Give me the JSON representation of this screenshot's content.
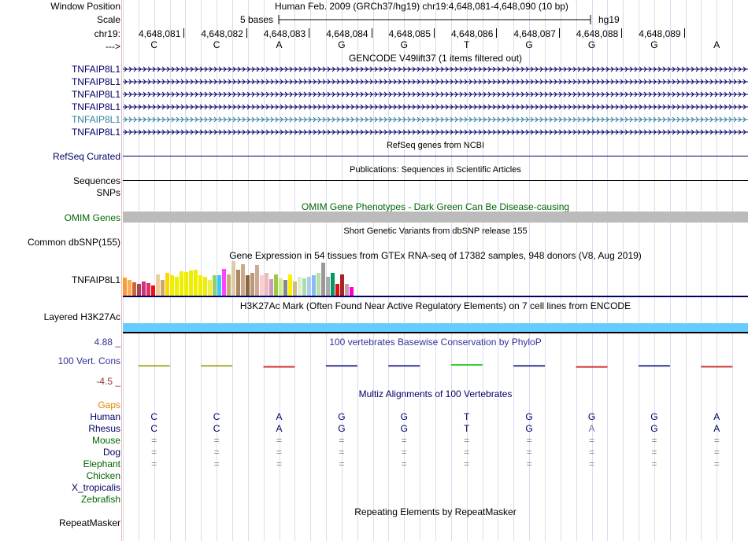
{
  "header": {
    "window_position_label": "Window Position",
    "scale_label": "Scale",
    "chr_label": "chr19:",
    "arrow_label": "--->",
    "assembly_position": "Human Feb. 2009 (GRCh37/hg19)   chr19:4,648,081-4,648,090 (10 bp)",
    "scale_text": "5 bases",
    "db": "hg19"
  },
  "ruler": {
    "positions": [
      "4,648,081",
      "4,648,082",
      "4,648,083",
      "4,648,084",
      "4,648,085",
      "4,648,086",
      "4,648,087",
      "4,648,088",
      "4,648,089"
    ],
    "bases": [
      "C",
      "C",
      "A",
      "G",
      "G",
      "T",
      "G",
      "G",
      "G",
      "A"
    ]
  },
  "gencode": {
    "title": "GENCODE V49lift37 (1 items filtered out)",
    "transcripts": [
      "TNFAIP8L1",
      "TNFAIP8L1",
      "TNFAIP8L1",
      "TNFAIP8L1",
      "TNFAIP8L1",
      "TNFAIP8L1"
    ]
  },
  "refseq": {
    "title": "RefSeq genes from NCBI",
    "label": "RefSeq Curated"
  },
  "pubs": {
    "title": "Publications: Sequences in Scientific Articles",
    "label_sequences": "Sequences",
    "label_snps": "SNPs"
  },
  "omim": {
    "title": "OMIM Gene Phenotypes - Dark Green Can Be Disease-causing",
    "label": "OMIM Genes"
  },
  "dbsnp": {
    "title": "Short Genetic Variants from dbSNP release 155",
    "label": "Common dbSNP(155)"
  },
  "gtex": {
    "title": "Gene Expression in 54 tissues from GTEx RNA-seq of 17382 samples, 948 donors (V8, Aug 2019)",
    "label": "TNFAIP8L1",
    "bars": [
      {
        "v": 0.52,
        "c": "#ff9933"
      },
      {
        "v": 0.45,
        "c": "#ffaa55"
      },
      {
        "v": 0.38,
        "c": "#cc6633"
      },
      {
        "v": 0.35,
        "c": "#aa4455"
      },
      {
        "v": 0.42,
        "c": "#cc3388"
      },
      {
        "v": 0.36,
        "c": "#dd3366"
      },
      {
        "v": 0.3,
        "c": "#ee1111"
      },
      {
        "v": 0.62,
        "c": "#eecc99"
      },
      {
        "v": 0.45,
        "c": "#ccaa66"
      },
      {
        "v": 0.65,
        "c": "#ffd700"
      },
      {
        "v": 0.6,
        "c": "#eeee00"
      },
      {
        "v": 0.55,
        "c": "#eeee00"
      },
      {
        "v": 0.7,
        "c": "#eeee00"
      },
      {
        "v": 0.68,
        "c": "#eeee00"
      },
      {
        "v": 0.72,
        "c": "#eeee00"
      },
      {
        "v": 0.74,
        "c": "#eeee00"
      },
      {
        "v": 0.6,
        "c": "#eeee00"
      },
      {
        "v": 0.55,
        "c": "#eeee00"
      },
      {
        "v": 0.45,
        "c": "#eeee44"
      },
      {
        "v": 0.58,
        "c": "#99cc66"
      },
      {
        "v": 0.6,
        "c": "#33ccff"
      },
      {
        "v": 0.78,
        "c": "#ff44ff"
      },
      {
        "v": 0.62,
        "c": "#ccaa77"
      },
      {
        "v": 1.0,
        "c": "#ddccaa"
      },
      {
        "v": 0.75,
        "c": "#aa8866"
      },
      {
        "v": 0.92,
        "c": "#ccaa88"
      },
      {
        "v": 0.6,
        "c": "#886644"
      },
      {
        "v": 0.65,
        "c": "#bb9977"
      },
      {
        "v": 0.88,
        "c": "#ccaa99"
      },
      {
        "v": 0.58,
        "c": "#ffcccc"
      },
      {
        "v": 0.65,
        "c": "#eebbbb"
      },
      {
        "v": 0.48,
        "c": "#cc99bb"
      },
      {
        "v": 0.62,
        "c": "#99cc44"
      },
      {
        "v": 0.5,
        "c": "#ccee88"
      },
      {
        "v": 0.45,
        "c": "#888888"
      },
      {
        "v": 0.62,
        "c": "#ffee00"
      },
      {
        "v": 0.4,
        "c": "#ccbb88"
      },
      {
        "v": 0.55,
        "c": "#ddeecc"
      },
      {
        "v": 0.5,
        "c": "#aaddaa"
      },
      {
        "v": 0.55,
        "c": "#aaccee"
      },
      {
        "v": 0.6,
        "c": "#88bbee"
      },
      {
        "v": 0.65,
        "c": "#bbddaa"
      },
      {
        "v": 0.95,
        "c": "#999999"
      },
      {
        "v": 0.55,
        "c": "#aaaaaa"
      },
      {
        "v": 0.65,
        "c": "#009966"
      },
      {
        "v": 0.35,
        "c": "#dd1111"
      },
      {
        "v": 0.62,
        "c": "#aa2222"
      },
      {
        "v": 0.35,
        "c": "#cc99aa"
      },
      {
        "v": 0.25,
        "c": "#ff00cc"
      }
    ]
  },
  "h3k27ac": {
    "title": "H3K27Ac Mark (Often Found Near Active Regulatory Elements) on 7 cell lines from ENCODE",
    "label": "Layered H3K27Ac"
  },
  "conservation": {
    "title": "100 vertebrates Basewise Conservation by PhyloP",
    "label": "100 Vert. Cons",
    "max_label": "4.88 _",
    "min_label": "-4.5 _",
    "scores": [
      {
        "v": 0.35,
        "c": "#aaaa33"
      },
      {
        "v": 0.35,
        "c": "#aaaa33"
      },
      {
        "v": -0.25,
        "c": "#cc3333"
      },
      {
        "v": 0.4,
        "c": "#333399"
      },
      {
        "v": 0.4,
        "c": "#333399"
      },
      {
        "v": 1.0,
        "c": "#33cc33"
      },
      {
        "v": 0.4,
        "c": "#333399"
      },
      {
        "v": -0.3,
        "c": "#cc3333"
      },
      {
        "v": 0.4,
        "c": "#333399"
      },
      {
        "v": -0.2,
        "c": "#cc3333"
      }
    ]
  },
  "multiz": {
    "title": "Multiz Alignments of 100 Vertebrates",
    "gaps_label": "Gaps",
    "species": [
      {
        "name": "Human",
        "color": "#000066",
        "seq": [
          "C",
          "C",
          "A",
          "G",
          "G",
          "T",
          "G",
          "G",
          "G",
          "A"
        ],
        "seq_color": "#000066"
      },
      {
        "name": "Rhesus",
        "color": "#000066",
        "seq": [
          "C",
          "C",
          "A",
          "G",
          "G",
          "T",
          "G",
          "A",
          "G",
          "A"
        ],
        "seq_color": "#000066"
      },
      {
        "name": "Mouse",
        "color": "#006600",
        "seq": [
          "=",
          "=",
          "=",
          "=",
          "=",
          "=",
          "=",
          "=",
          "=",
          "="
        ],
        "seq_color": "#888888"
      },
      {
        "name": "Dog",
        "color": "#000066",
        "seq": [
          "=",
          "=",
          "=",
          "=",
          "=",
          "=",
          "=",
          "=",
          "=",
          "="
        ],
        "seq_color": "#888888"
      },
      {
        "name": "Elephant",
        "color": "#006600",
        "seq": [
          "=",
          "=",
          "=",
          "=",
          "=",
          "=",
          "=",
          "=",
          "=",
          "="
        ],
        "seq_color": "#888888"
      },
      {
        "name": "Chicken",
        "color": "#006600",
        "seq": [],
        "seq_color": "#888888"
      },
      {
        "name": "X_tropicalis",
        "color": "#000066",
        "seq": [],
        "seq_color": "#888888"
      },
      {
        "name": "Zebrafish",
        "color": "#006600",
        "seq": [],
        "seq_color": "#888888"
      }
    ]
  },
  "repeatmasker": {
    "title": "Repeating Elements by RepeatMasker",
    "label": "RepeatMasker"
  },
  "colors": {
    "gene_navy": "#000066",
    "gene_highlight": "#2f7fa0",
    "omim_bar": "#bbbbbb",
    "h3k27ac_bar": "#66ccff",
    "grid": "#dcdcf0",
    "gutter": "#e8b8b8"
  }
}
